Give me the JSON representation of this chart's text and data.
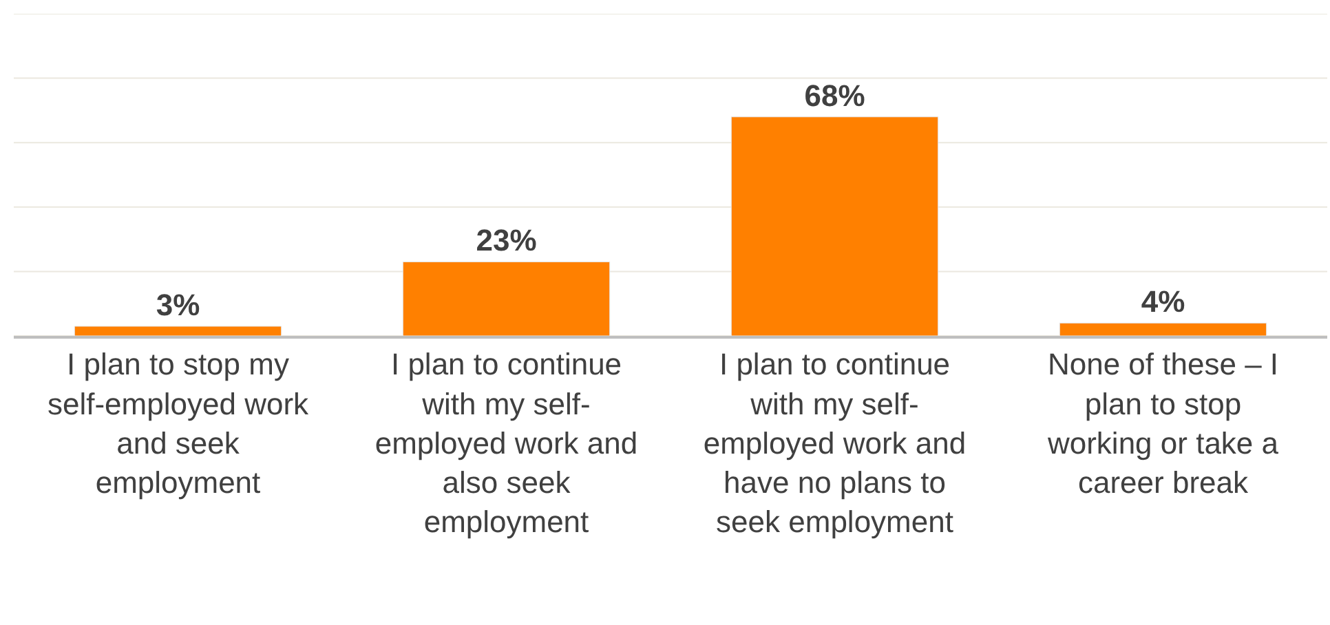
{
  "chart_data": {
    "type": "bar",
    "categories": [
      "I plan to stop my self-employed work and seek employment",
      "I plan to continue with my self-employed work and also seek employment",
      "I plan to continue with my self-employed work and have no plans to seek employment",
      "None of these – I plan to stop working or take a career break"
    ],
    "values": [
      3,
      23,
      68,
      4
    ],
    "value_labels": [
      "3%",
      "23%",
      "68%",
      "4%"
    ],
    "color": "#ff8000",
    "ylim": [
      0,
      100
    ],
    "yticks": [
      {
        "value": 0,
        "label": null
      },
      {
        "value": 20,
        "label": null
      },
      {
        "value": 40,
        "label": null
      },
      {
        "value": 60,
        "label": null
      },
      {
        "value": 80,
        "label": null
      },
      {
        "value": 100,
        "label": null
      }
    ],
    "grid": "y",
    "legend": false,
    "tick_labels": "x"
  }
}
